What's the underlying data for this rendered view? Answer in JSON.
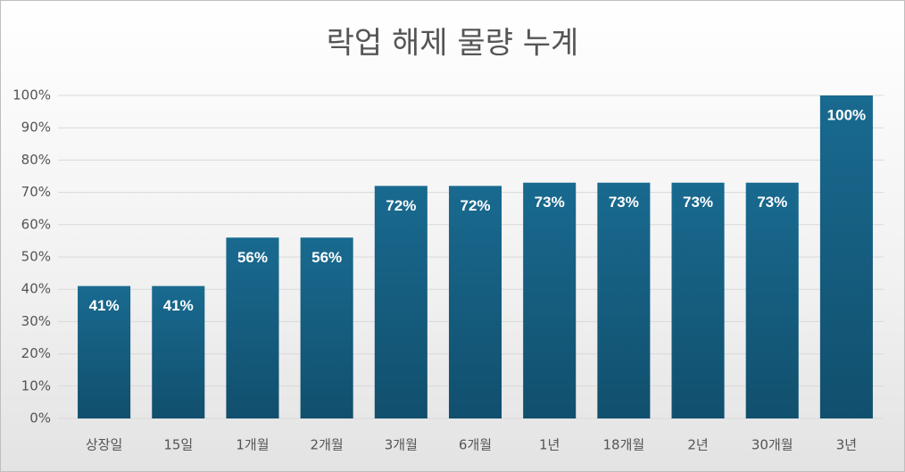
{
  "chart_data": {
    "type": "bar",
    "title": "락업 해제 물량 누계",
    "categories": [
      "상장일",
      "15일",
      "1개월",
      "2개월",
      "3개월",
      "6개월",
      "1년",
      "18개월",
      "2년",
      "30개월",
      "3년"
    ],
    "values": [
      41,
      41,
      56,
      56,
      72,
      72,
      73,
      73,
      73,
      73,
      100
    ],
    "value_labels": [
      "41%",
      "41%",
      "56%",
      "56%",
      "72%",
      "72%",
      "73%",
      "73%",
      "73%",
      "73%",
      "100%"
    ],
    "color": "#165f82",
    "ylim": [
      0,
      100
    ],
    "yticks": [
      {
        "value": 0,
        "label": "0%"
      },
      {
        "value": 10,
        "label": "10%"
      },
      {
        "value": 20,
        "label": "20%"
      },
      {
        "value": 30,
        "label": "30%"
      },
      {
        "value": 40,
        "label": "40%"
      },
      {
        "value": 50,
        "label": "50%"
      },
      {
        "value": 60,
        "label": "60%"
      },
      {
        "value": 70,
        "label": "70%"
      },
      {
        "value": 80,
        "label": "80%"
      },
      {
        "value": 90,
        "label": "90%"
      },
      {
        "value": 100,
        "label": "100%"
      }
    ],
    "grid": true
  }
}
